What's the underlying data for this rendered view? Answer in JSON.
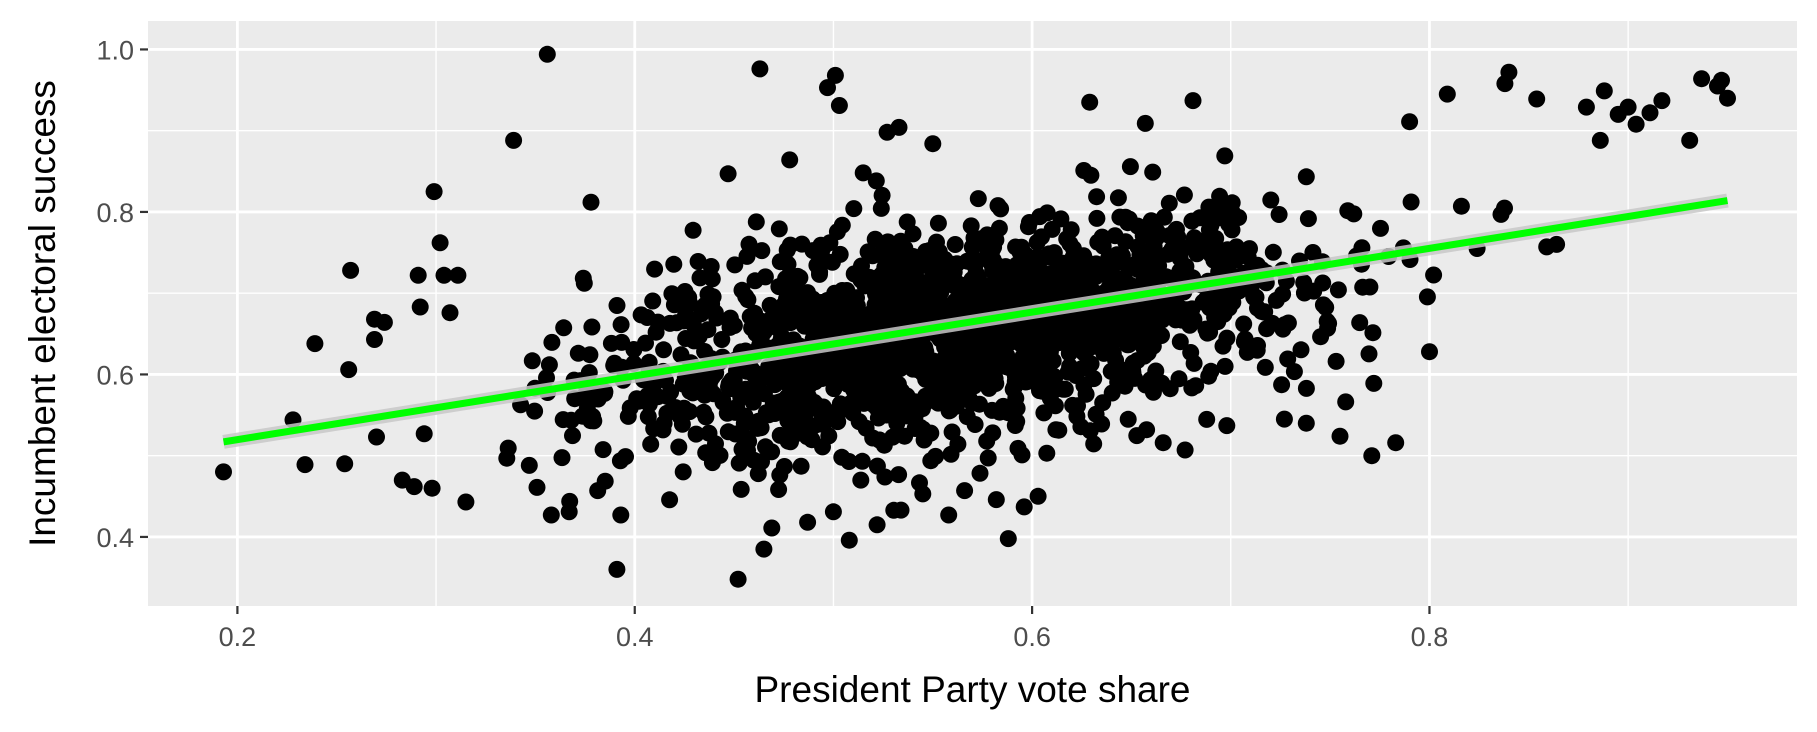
{
  "chart_data": {
    "type": "scatter",
    "title": "",
    "xlabel": "President Party vote share",
    "ylabel": "Incumbent electoral success",
    "xlim": [
      0.155,
      0.985
    ],
    "ylim": [
      0.315,
      1.035
    ],
    "x_ticks": [
      0.2,
      0.4,
      0.6,
      0.8
    ],
    "x_tick_labels": [
      "0.2",
      "0.4",
      "0.6",
      "0.8"
    ],
    "x_minor_ticks": [
      0.3,
      0.5,
      0.7,
      0.9
    ],
    "y_ticks": [
      0.4,
      0.6,
      0.8,
      1.0
    ],
    "y_tick_labels": [
      "0.4",
      "0.6",
      "0.8",
      "1.0"
    ],
    "y_minor_ticks": [
      0.5,
      0.7,
      0.9
    ],
    "grid": true,
    "panel_background": "#ebebeb",
    "grid_color": "#ffffff",
    "point_color": "#000000",
    "fit_line": {
      "method": "linear",
      "color": "#00ff00",
      "ribbon_color": "#c8c8c8",
      "x": [
        0.193,
        0.95
      ],
      "y": [
        0.517,
        0.814
      ]
    },
    "points": [
      [
        0.193,
        0.48
      ],
      [
        0.228,
        0.544
      ],
      [
        0.234,
        0.489
      ],
      [
        0.239,
        0.638
      ],
      [
        0.254,
        0.49
      ],
      [
        0.256,
        0.606
      ],
      [
        0.257,
        0.728
      ],
      [
        0.269,
        0.668
      ],
      [
        0.269,
        0.643
      ],
      [
        0.27,
        0.523
      ],
      [
        0.274,
        0.664
      ],
      [
        0.283,
        0.47
      ],
      [
        0.289,
        0.462
      ],
      [
        0.291,
        0.722
      ],
      [
        0.292,
        0.683
      ],
      [
        0.294,
        0.527
      ],
      [
        0.298,
        0.46
      ],
      [
        0.299,
        0.825
      ],
      [
        0.302,
        0.762
      ],
      [
        0.304,
        0.722
      ],
      [
        0.307,
        0.676
      ],
      [
        0.311,
        0.722
      ],
      [
        0.315,
        0.443
      ],
      [
        0.339,
        0.888
      ],
      [
        0.356,
        0.994
      ],
      [
        0.358,
        0.427
      ],
      [
        0.367,
        0.431
      ],
      [
        0.378,
        0.812
      ],
      [
        0.391,
        0.36
      ],
      [
        0.393,
        0.427
      ],
      [
        0.447,
        0.847
      ],
      [
        0.452,
        0.348
      ],
      [
        0.463,
        0.976
      ],
      [
        0.465,
        0.385
      ],
      [
        0.469,
        0.411
      ],
      [
        0.478,
        0.864
      ],
      [
        0.487,
        0.418
      ],
      [
        0.497,
        0.953
      ],
      [
        0.5,
        0.431
      ],
      [
        0.501,
        0.968
      ],
      [
        0.503,
        0.931
      ],
      [
        0.508,
        0.396
      ],
      [
        0.515,
        0.848
      ],
      [
        0.522,
        0.415
      ],
      [
        0.527,
        0.898
      ],
      [
        0.533,
        0.904
      ],
      [
        0.534,
        0.433
      ],
      [
        0.545,
        0.453
      ],
      [
        0.55,
        0.884
      ],
      [
        0.558,
        0.427
      ],
      [
        0.566,
        0.457
      ],
      [
        0.582,
        0.446
      ],
      [
        0.588,
        0.398
      ],
      [
        0.596,
        0.437
      ],
      [
        0.603,
        0.45
      ],
      [
        0.626,
        0.851
      ],
      [
        0.629,
        0.935
      ],
      [
        0.657,
        0.909
      ],
      [
        0.666,
        0.516
      ],
      [
        0.677,
        0.507
      ],
      [
        0.681,
        0.937
      ],
      [
        0.697,
        0.869
      ],
      [
        0.698,
        0.537
      ],
      [
        0.727,
        0.545
      ],
      [
        0.738,
        0.54
      ],
      [
        0.753,
        0.616
      ],
      [
        0.755,
        0.524
      ],
      [
        0.771,
        0.5
      ],
      [
        0.772,
        0.589
      ],
      [
        0.783,
        0.516
      ],
      [
        0.79,
        0.911
      ],
      [
        0.8,
        0.628
      ],
      [
        0.809,
        0.945
      ],
      [
        0.824,
        0.755
      ],
      [
        0.836,
        0.797
      ],
      [
        0.838,
        0.958
      ],
      [
        0.84,
        0.972
      ],
      [
        0.854,
        0.939
      ],
      [
        0.859,
        0.757
      ],
      [
        0.864,
        0.76
      ],
      [
        0.879,
        0.929
      ],
      [
        0.886,
        0.888
      ],
      [
        0.888,
        0.949
      ],
      [
        0.895,
        0.92
      ],
      [
        0.9,
        0.929
      ],
      [
        0.904,
        0.908
      ],
      [
        0.911,
        0.922
      ],
      [
        0.917,
        0.937
      ],
      [
        0.931,
        0.888
      ],
      [
        0.937,
        0.964
      ],
      [
        0.945,
        0.955
      ],
      [
        0.947,
        0.962
      ],
      [
        0.95,
        0.94
      ]
    ],
    "dense_cloud": {
      "x_center": 0.56,
      "x_spread": 0.088,
      "y_intercept": 0.437,
      "y_slope": 0.38,
      "y_spread": 0.062,
      "x_range": [
        0.33,
        0.87
      ],
      "y_range": [
        0.43,
        0.87
      ]
    }
  }
}
